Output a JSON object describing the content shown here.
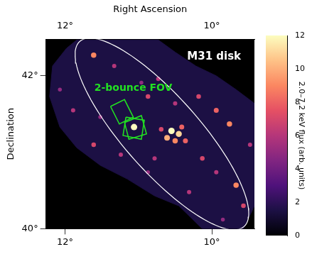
{
  "chart_data": {
    "type": "scatter",
    "x_label": "Right Ascension",
    "y_label": "Declination",
    "xlim": [
      12.26,
      9.42
    ],
    "ylim": [
      40.0,
      42.48
    ],
    "xticks": [
      {
        "value": 12,
        "label": "12°"
      },
      {
        "value": 10,
        "label": "10°"
      }
    ],
    "yticks": [
      {
        "value": 40,
        "label": "40°"
      },
      {
        "value": 42,
        "label": "42°"
      }
    ],
    "grid": true,
    "coverage": {
      "flux": 1.5,
      "points": [
        [
          11.84,
          42.47
        ],
        [
          10.73,
          42.47
        ],
        [
          10.5,
          42.31
        ],
        [
          10.22,
          42.13
        ],
        [
          9.94,
          42.0
        ],
        [
          9.67,
          41.82
        ],
        [
          9.42,
          41.64
        ],
        [
          9.42,
          40.3
        ],
        [
          9.57,
          40.0
        ],
        [
          10.13,
          40.0
        ],
        [
          10.45,
          40.3
        ],
        [
          10.78,
          40.43
        ],
        [
          11.15,
          40.65
        ],
        [
          11.52,
          40.83
        ],
        [
          11.84,
          41.06
        ],
        [
          12.07,
          41.33
        ],
        [
          12.21,
          41.73
        ],
        [
          12.17,
          42.13
        ],
        [
          11.98,
          42.36
        ]
      ]
    },
    "sources": [
      {
        "x": 10.55,
        "y": 41.28,
        "flux": 12
      },
      {
        "x": 10.45,
        "y": 41.24,
        "flux": 11
      },
      {
        "x": 10.61,
        "y": 41.19,
        "flux": 10
      },
      {
        "x": 10.5,
        "y": 41.15,
        "flux": 9
      },
      {
        "x": 10.41,
        "y": 41.33,
        "flux": 8
      },
      {
        "x": 10.69,
        "y": 41.3,
        "flux": 7
      },
      {
        "x": 10.36,
        "y": 41.15,
        "flux": 8
      },
      {
        "x": 11.06,
        "y": 41.33,
        "flux": 12
      },
      {
        "x": 11.61,
        "y": 42.27,
        "flux": 9
      },
      {
        "x": 11.33,
        "y": 42.13,
        "flux": 6
      },
      {
        "x": 10.87,
        "y": 41.73,
        "flux": 7
      },
      {
        "x": 10.73,
        "y": 41.96,
        "flux": 6
      },
      {
        "x": 9.94,
        "y": 41.55,
        "flux": 8
      },
      {
        "x": 9.76,
        "y": 41.37,
        "flux": 9
      },
      {
        "x": 10.13,
        "y": 40.92,
        "flux": 7
      },
      {
        "x": 9.94,
        "y": 40.74,
        "flux": 6
      },
      {
        "x": 9.67,
        "y": 40.57,
        "flux": 9
      },
      {
        "x": 9.57,
        "y": 40.3,
        "flux": 7
      },
      {
        "x": 9.48,
        "y": 41.1,
        "flux": 6
      },
      {
        "x": 11.61,
        "y": 41.1,
        "flux": 7
      },
      {
        "x": 11.89,
        "y": 41.55,
        "flux": 6
      },
      {
        "x": 12.07,
        "y": 41.82,
        "flux": 5
      },
      {
        "x": 11.24,
        "y": 40.97,
        "flux": 6
      },
      {
        "x": 10.87,
        "y": 40.74,
        "flux": 5
      },
      {
        "x": 10.31,
        "y": 40.48,
        "flux": 6
      },
      {
        "x": 9.85,
        "y": 40.12,
        "flux": 5
      },
      {
        "x": 10.18,
        "y": 41.73,
        "flux": 7
      },
      {
        "x": 10.96,
        "y": 41.91,
        "flux": 5
      },
      {
        "x": 10.5,
        "y": 41.64,
        "flux": 6
      },
      {
        "x": 11.52,
        "y": 41.46,
        "flux": 5
      },
      {
        "x": 10.78,
        "y": 40.92,
        "flux": 6
      }
    ],
    "disk_ellipse": {
      "center": [
        10.68,
        41.24
      ],
      "major": [
        1.12,
        1.21
      ],
      "minor": [
        -0.38,
        0.33
      ],
      "color": "#ffffff"
    },
    "fov": {
      "color": "#22e022",
      "squares": [
        [
          [
            11.38,
            41.6
          ],
          [
            11.19,
            41.69
          ],
          [
            11.07,
            41.46
          ],
          [
            11.26,
            41.37
          ]
        ],
        [
          [
            11.19,
            41.39
          ],
          [
            10.96,
            41.48
          ],
          [
            10.89,
            41.24
          ],
          [
            11.13,
            41.17
          ]
        ],
        [
          [
            11.17,
            41.46
          ],
          [
            10.92,
            41.42
          ],
          [
            10.96,
            41.17
          ],
          [
            11.21,
            41.22
          ]
        ]
      ]
    },
    "annotations": [
      {
        "text": "M31 disk",
        "x": 9.97,
        "y": 42.25,
        "color": "#ffffff"
      },
      {
        "text": "2-bounce FOV",
        "x": 11.07,
        "y": 41.84,
        "color": "#22e022"
      }
    ],
    "colorbar": {
      "label": "2.0–7.2 keV flux (arb. units)",
      "range": [
        0,
        12
      ],
      "ticks": [
        0,
        2,
        4,
        6,
        8,
        10,
        12
      ]
    }
  }
}
